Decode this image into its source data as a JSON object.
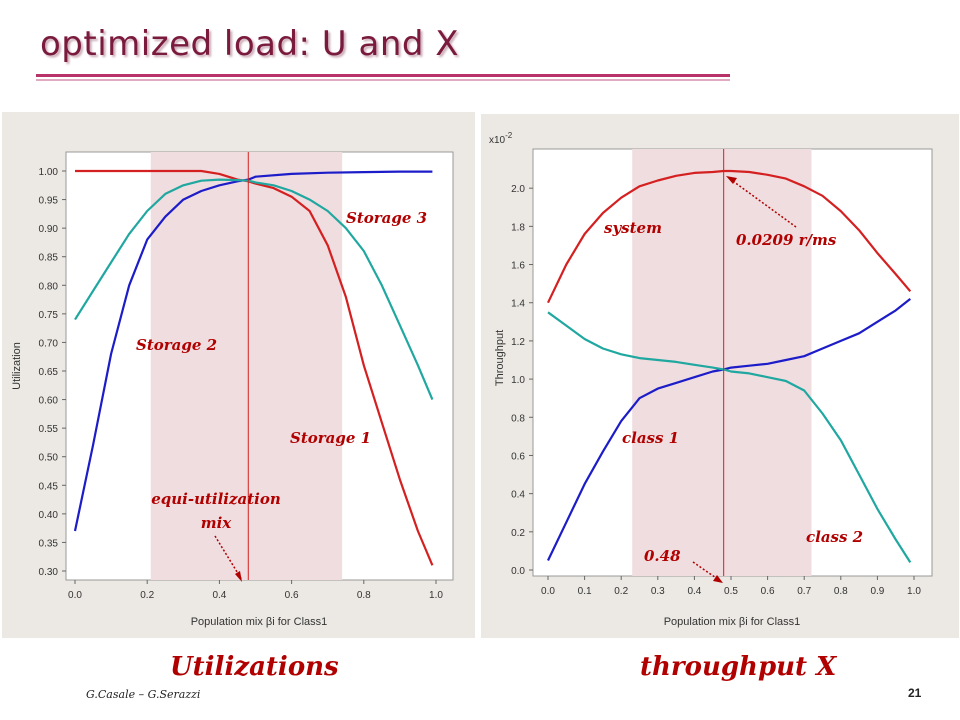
{
  "slide": {
    "title": "optimized load: U and X",
    "footer_author": "G.Casale – G.Serazzi",
    "page_number": "21"
  },
  "captions": {
    "left": "Utilizations",
    "right": "throughput X"
  },
  "colors": {
    "red": "#d42020",
    "blue": "#1c1cc8",
    "teal": "#20a8a0",
    "band": "#f0dde0",
    "annotation": "#b00000",
    "title": "#7a1a3c"
  },
  "chart_data": [
    {
      "type": "line",
      "xlabel": "Population mix βi for Class1",
      "ylabel": "Utilization",
      "xlim": [
        0,
        1
      ],
      "ylim": [
        0.3,
        1.0
      ],
      "xticks": [
        "0.0",
        "0.2",
        "0.4",
        "0.6",
        "0.8",
        "1.0"
      ],
      "yticks": [
        "0.30",
        "0.35",
        "0.40",
        "0.45",
        "0.50",
        "0.55",
        "0.60",
        "0.65",
        "0.70",
        "0.75",
        "0.80",
        "0.85",
        "0.90",
        "0.95",
        "1.00"
      ],
      "shaded_band": [
        0.21,
        0.74
      ],
      "marker_x": 0.48,
      "series": [
        {
          "name": "Storage 1",
          "color": "red",
          "x": [
            0.0,
            0.05,
            0.1,
            0.15,
            0.2,
            0.25,
            0.3,
            0.35,
            0.4,
            0.45,
            0.48,
            0.5,
            0.55,
            0.6,
            0.65,
            0.7,
            0.75,
            0.8,
            0.85,
            0.9,
            0.95,
            0.99
          ],
          "y": [
            1.0,
            1.0,
            1.0,
            1.0,
            1.0,
            1.0,
            1.0,
            1.0,
            0.995,
            0.985,
            0.982,
            0.978,
            0.97,
            0.955,
            0.93,
            0.87,
            0.78,
            0.66,
            0.56,
            0.46,
            0.37,
            0.31
          ]
        },
        {
          "name": "Storage 2",
          "color": "blue",
          "x": [
            0.0,
            0.05,
            0.1,
            0.15,
            0.2,
            0.25,
            0.3,
            0.35,
            0.4,
            0.45,
            0.48,
            0.5,
            0.6,
            0.7,
            0.8,
            0.9,
            0.95,
            0.99
          ],
          "y": [
            0.37,
            0.52,
            0.68,
            0.8,
            0.88,
            0.92,
            0.95,
            0.965,
            0.975,
            0.982,
            0.985,
            0.99,
            0.995,
            0.997,
            0.998,
            0.999,
            0.999,
            0.999
          ]
        },
        {
          "name": "Storage 3",
          "color": "teal",
          "x": [
            0.0,
            0.05,
            0.1,
            0.15,
            0.2,
            0.25,
            0.3,
            0.35,
            0.4,
            0.45,
            0.48,
            0.5,
            0.55,
            0.6,
            0.65,
            0.7,
            0.75,
            0.8,
            0.85,
            0.9,
            0.95,
            0.99
          ],
          "y": [
            0.74,
            0.79,
            0.84,
            0.89,
            0.93,
            0.96,
            0.975,
            0.983,
            0.985,
            0.984,
            0.983,
            0.98,
            0.975,
            0.965,
            0.95,
            0.93,
            0.9,
            0.86,
            0.8,
            0.73,
            0.66,
            0.6
          ]
        }
      ],
      "annotations": {
        "storage3": "Storage 3",
        "storage2": "Storage 2",
        "storage1": "Storage 1",
        "equi_line1": "equi-utilization",
        "equi_line2": "mix"
      }
    },
    {
      "type": "line",
      "xlabel": "Population mix βi for Class1",
      "ylabel": "Throughput",
      "multiplier": "x10",
      "multiplier_exp": "-2",
      "xlim": [
        0,
        1
      ],
      "ylim": [
        0,
        2.2
      ],
      "xticks": [
        "0.0",
        "0.1",
        "0.2",
        "0.3",
        "0.4",
        "0.5",
        "0.6",
        "0.7",
        "0.8",
        "0.9",
        "1.0"
      ],
      "yticks": [
        "0.0",
        "0.2",
        "0.4",
        "0.6",
        "0.8",
        "1.0",
        "1.2",
        "1.4",
        "1.6",
        "1.8",
        "2.0"
      ],
      "shaded_band": [
        0.23,
        0.72
      ],
      "marker_x": 0.48,
      "series": [
        {
          "name": "system",
          "color": "red",
          "x": [
            0.0,
            0.05,
            0.1,
            0.15,
            0.2,
            0.25,
            0.3,
            0.35,
            0.4,
            0.45,
            0.48,
            0.5,
            0.55,
            0.6,
            0.65,
            0.7,
            0.75,
            0.8,
            0.85,
            0.9,
            0.95,
            0.99
          ],
          "y": [
            1.4,
            1.6,
            1.76,
            1.87,
            1.95,
            2.01,
            2.04,
            2.065,
            2.08,
            2.085,
            2.09,
            2.09,
            2.085,
            2.07,
            2.05,
            2.01,
            1.96,
            1.88,
            1.78,
            1.66,
            1.55,
            1.46
          ]
        },
        {
          "name": "class 1",
          "color": "blue",
          "x": [
            0.0,
            0.05,
            0.1,
            0.15,
            0.2,
            0.25,
            0.3,
            0.35,
            0.4,
            0.45,
            0.48,
            0.5,
            0.55,
            0.6,
            0.65,
            0.7,
            0.75,
            0.8,
            0.85,
            0.9,
            0.95,
            0.99
          ],
          "y": [
            0.05,
            0.25,
            0.45,
            0.62,
            0.78,
            0.9,
            0.95,
            0.98,
            1.01,
            1.04,
            1.05,
            1.06,
            1.07,
            1.08,
            1.1,
            1.12,
            1.16,
            1.2,
            1.24,
            1.3,
            1.36,
            1.42
          ]
        },
        {
          "name": "class 2",
          "color": "teal",
          "x": [
            0.0,
            0.05,
            0.1,
            0.15,
            0.2,
            0.25,
            0.3,
            0.35,
            0.4,
            0.45,
            0.48,
            0.5,
            0.55,
            0.6,
            0.65,
            0.7,
            0.75,
            0.8,
            0.85,
            0.9,
            0.95,
            0.99
          ],
          "y": [
            1.35,
            1.28,
            1.21,
            1.16,
            1.13,
            1.11,
            1.1,
            1.09,
            1.075,
            1.06,
            1.05,
            1.04,
            1.03,
            1.01,
            0.99,
            0.94,
            0.82,
            0.68,
            0.5,
            0.32,
            0.16,
            0.04
          ]
        }
      ],
      "annotations": {
        "system": "system",
        "peak": "0.0209 r/ms",
        "class1": "class 1",
        "class2": "class 2",
        "mix": "0.48"
      }
    }
  ]
}
